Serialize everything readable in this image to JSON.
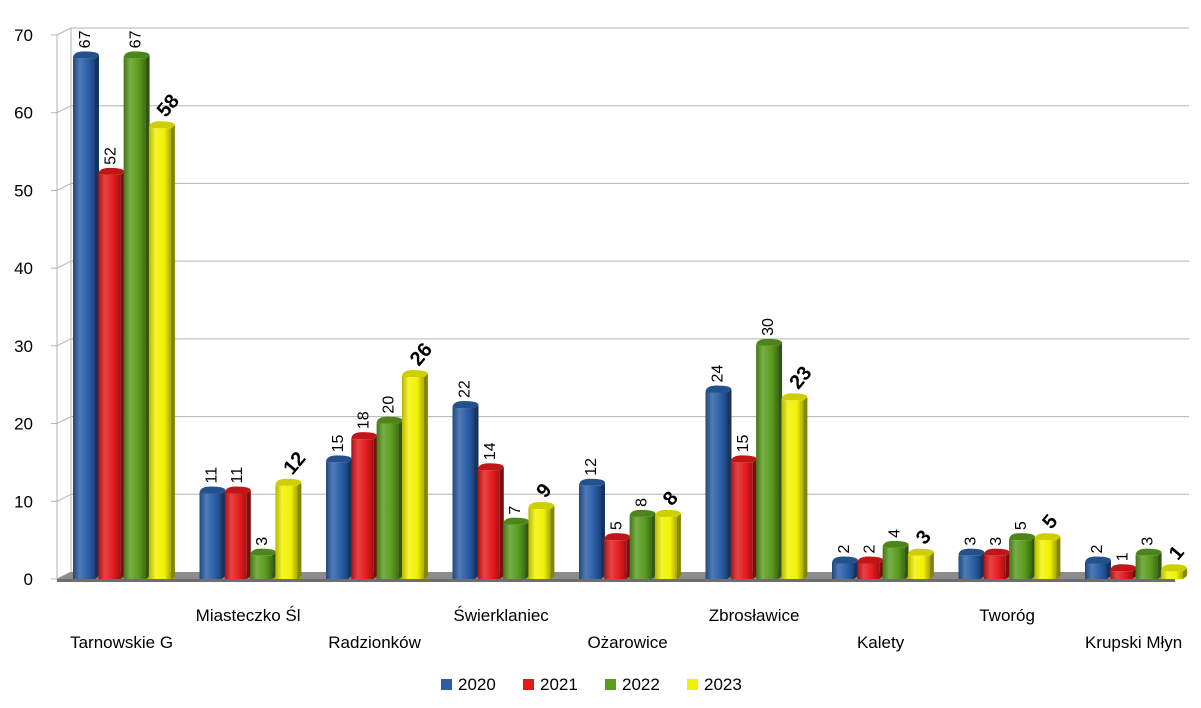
{
  "chart_data": {
    "type": "bar",
    "title": "",
    "xlabel": "",
    "ylabel": "",
    "ylim": [
      0,
      70
    ],
    "yticks": [
      0,
      10,
      20,
      30,
      40,
      50,
      60,
      70
    ],
    "grid": true,
    "legend_position": "bottom",
    "categories": [
      "Tarnowskie G",
      "Miasteczko Śl",
      "Radzionków",
      "Świerklaniec",
      "Ożarowice",
      "Zbrosławice",
      "Kalety",
      "Tworóg",
      "Krupski Młyn"
    ],
    "series": [
      {
        "name": "2020",
        "color": "#2a5ea7",
        "values": [
          67,
          11,
          15,
          22,
          12,
          24,
          2,
          3,
          2
        ],
        "label_bold": false
      },
      {
        "name": "2021",
        "color": "#e31a1c",
        "values": [
          52,
          11,
          18,
          14,
          5,
          15,
          2,
          3,
          1
        ],
        "label_bold": false
      },
      {
        "name": "2022",
        "color": "#5a9c1e",
        "values": [
          67,
          3,
          20,
          7,
          8,
          30,
          4,
          5,
          3
        ],
        "label_bold": false
      },
      {
        "name": "2023",
        "color": "#f2f200",
        "values": [
          58,
          12,
          26,
          9,
          8,
          23,
          3,
          5,
          1
        ],
        "label_bold": true
      }
    ]
  }
}
